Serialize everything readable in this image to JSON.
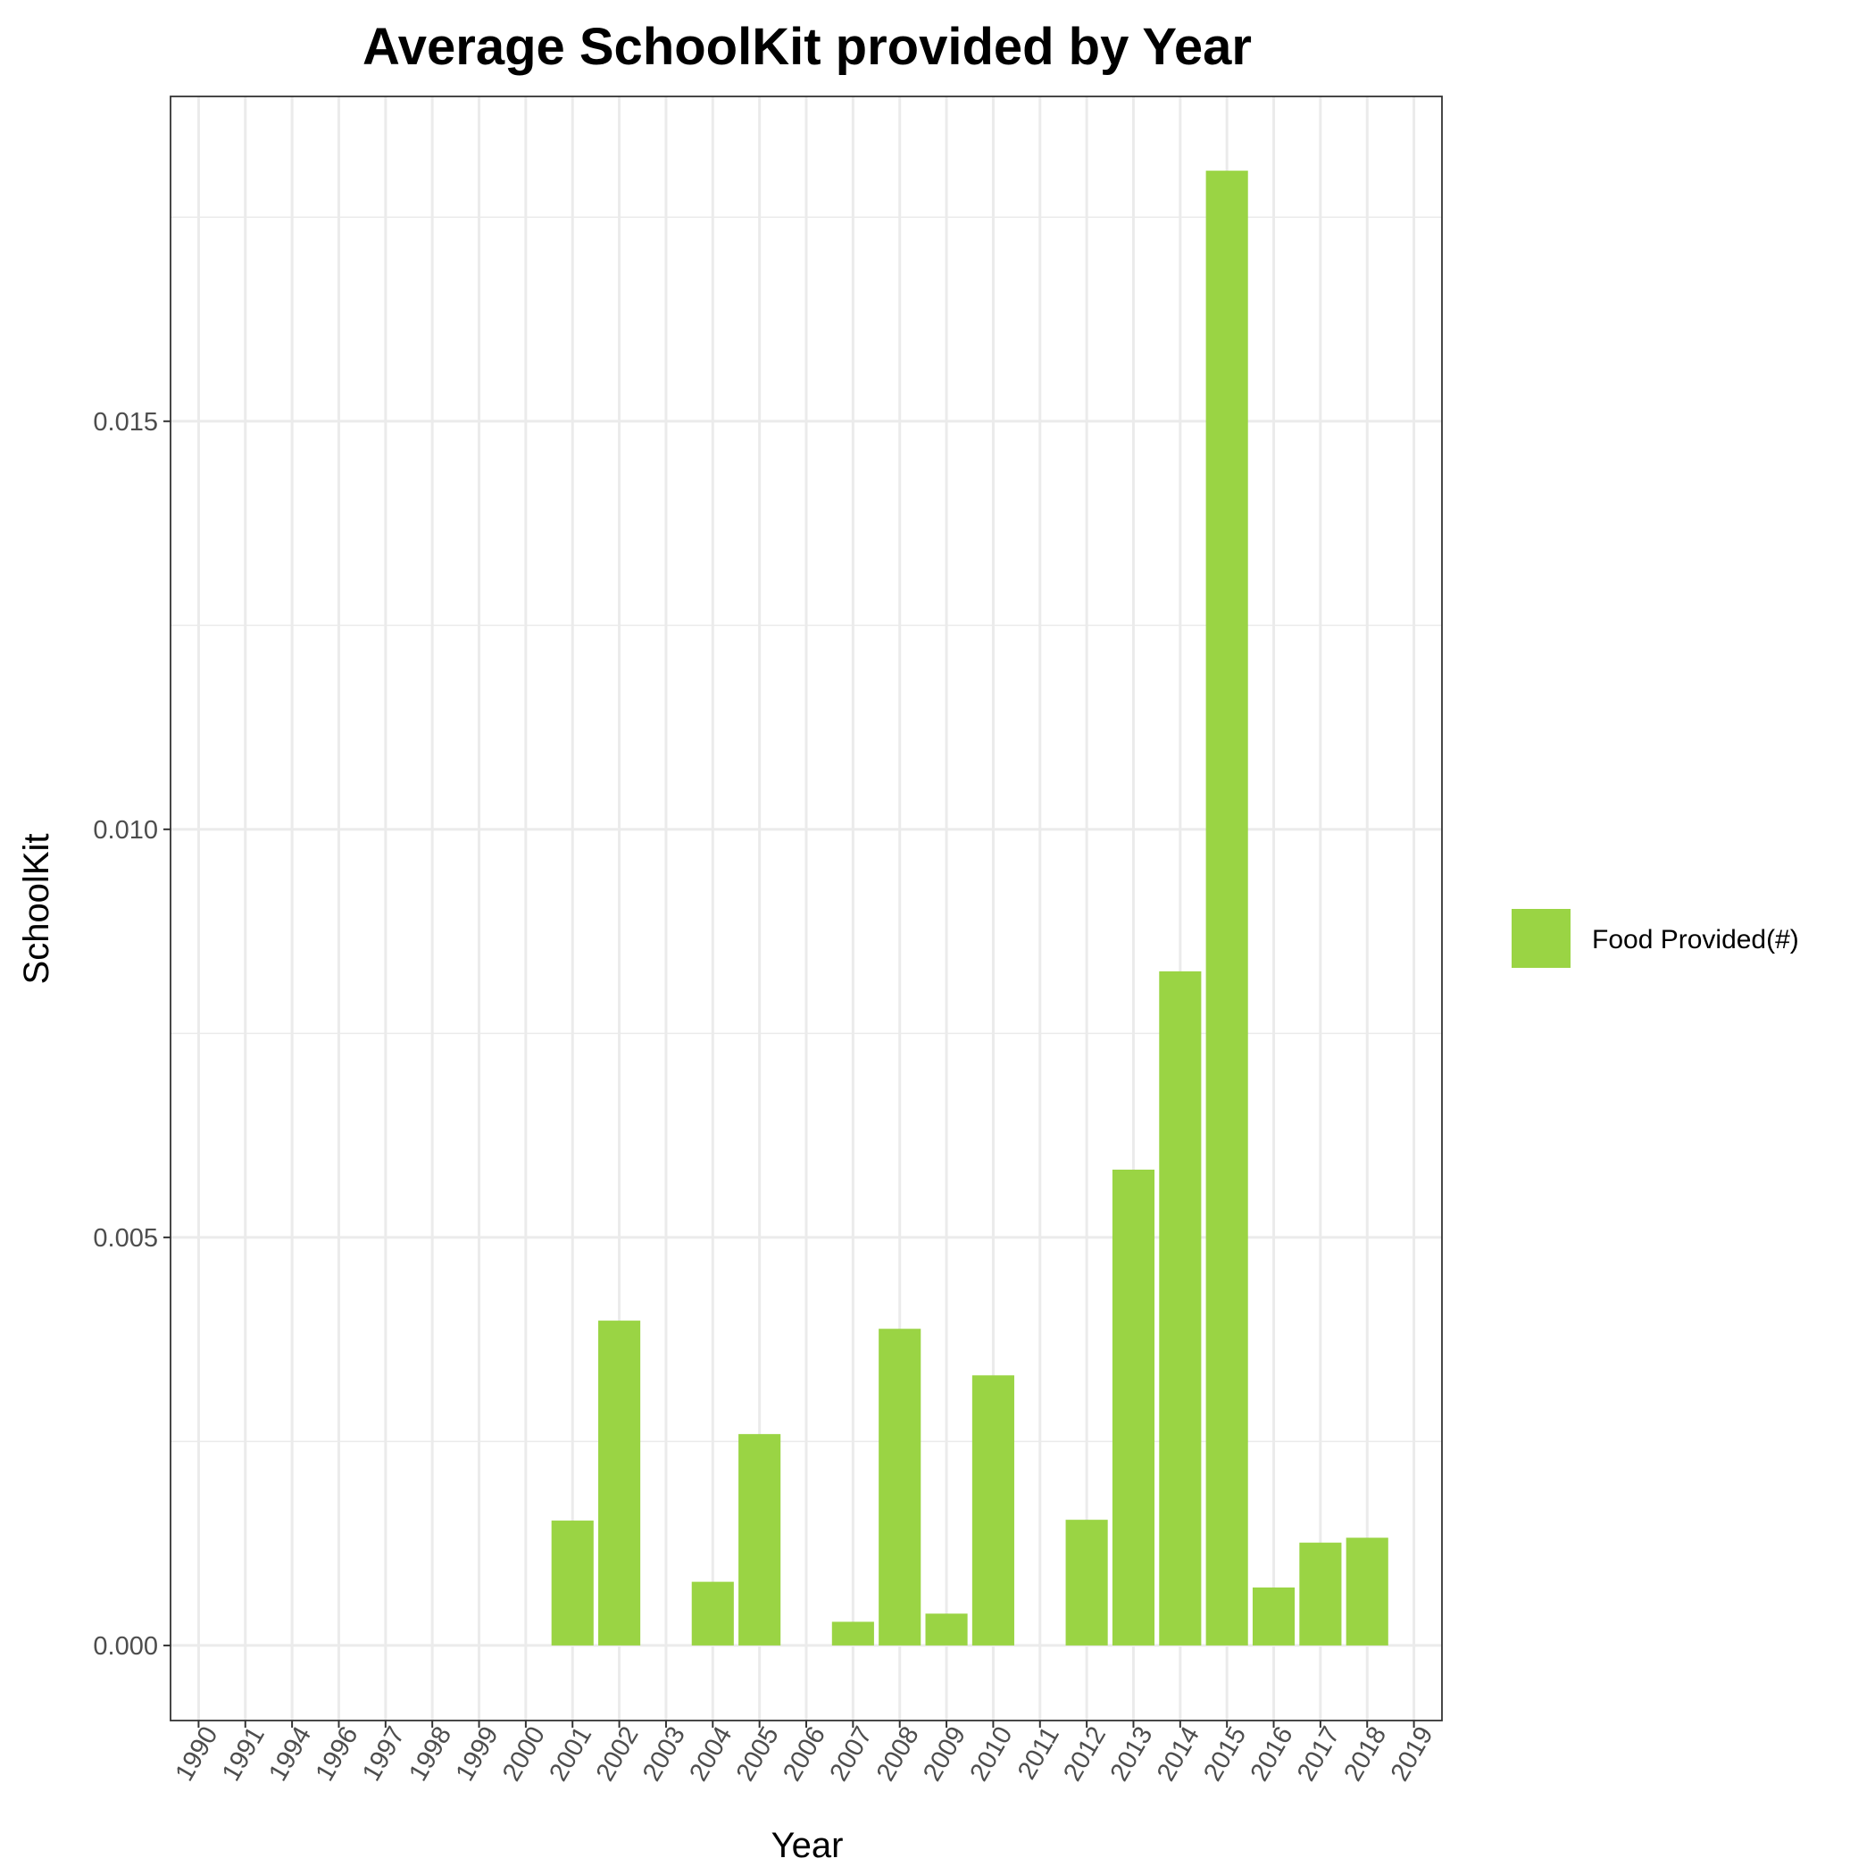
{
  "chart_data": {
    "type": "bar",
    "title": "Average SchoolKit provided by Year",
    "xlabel": "Year",
    "ylabel": "SchoolKit",
    "categories": [
      "1990",
      "1991",
      "1994",
      "1996",
      "1997",
      "1998",
      "1999",
      "2000",
      "2001",
      "2002",
      "2003",
      "2004",
      "2005",
      "2006",
      "2007",
      "2008",
      "2009",
      "2010",
      "2011",
      "2012",
      "2013",
      "2014",
      "2015",
      "2016",
      "2017",
      "2018",
      "2019"
    ],
    "series": [
      {
        "name": "Food Provided(#)",
        "color": "#9ad444",
        "values": [
          0,
          0,
          0,
          0,
          0,
          0,
          0,
          0,
          0.00153,
          0.00398,
          0,
          0.00078,
          0.00259,
          0,
          0.00029,
          0.00388,
          0.00039,
          0.00331,
          0,
          0.00154,
          0.00583,
          0.00826,
          0.01807,
          0.00071,
          0.00126,
          0.00132,
          0
        ]
      }
    ],
    "ylim": [
      -0.00092,
      0.01898
    ],
    "yticks": [
      0.0,
      0.005,
      0.01,
      0.015
    ],
    "ytick_labels": [
      "0.000",
      "0.005",
      "0.010",
      "0.015"
    ],
    "grid": true,
    "legend_position": "right"
  }
}
